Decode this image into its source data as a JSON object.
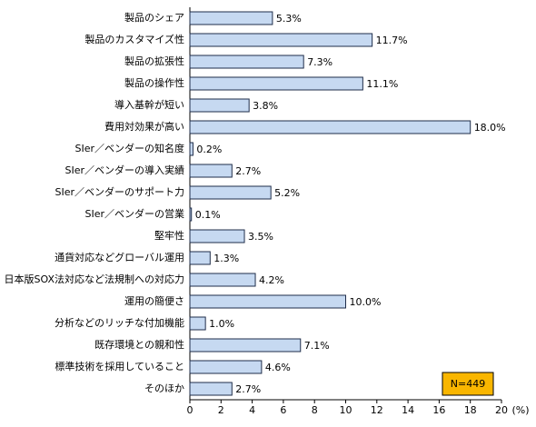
{
  "chart_data": {
    "type": "bar",
    "orientation": "horizontal",
    "categories": [
      "製品のシェア",
      "製品のカスタマイズ性",
      "製品の拡張性",
      "製品の操作性",
      "導入基幹が短い",
      "費用対効果が高い",
      "SIer／ベンダーの知名度",
      "SIer／ベンダーの導入実績",
      "SIer／ベンダーのサポート力",
      "SIer／ベンダーの営業",
      "堅牢性",
      "通貨対応などグローバル運用",
      "日本版SOX法対応など法規制への対応力",
      "運用の簡便さ",
      "分析などのリッチな付加機能",
      "既存環境との親和性",
      "標準技術を採用していること",
      "そのほか"
    ],
    "values": [
      5.3,
      11.7,
      7.3,
      11.1,
      3.8,
      18.0,
      0.2,
      2.7,
      5.2,
      0.1,
      3.5,
      1.3,
      4.2,
      10.0,
      1.0,
      7.1,
      4.6,
      2.7
    ],
    "value_labels": [
      "5.3%",
      "11.7%",
      "7.3%",
      "11.1%",
      "3.8%",
      "18.0%",
      "0.2%",
      "2.7%",
      "5.2%",
      "0.1%",
      "3.5%",
      "1.3%",
      "4.2%",
      "10.0%",
      "1.0%",
      "7.1%",
      "4.6%",
      "2.7%"
    ],
    "color": "#c6d9f1",
    "xlim": [
      0,
      20
    ],
    "xticks": [
      0,
      2,
      4,
      6,
      8,
      10,
      12,
      14,
      16,
      18,
      20
    ],
    "x_label": "(%)",
    "annotation": "N=449",
    "annotation_color": "#f9b600"
  }
}
